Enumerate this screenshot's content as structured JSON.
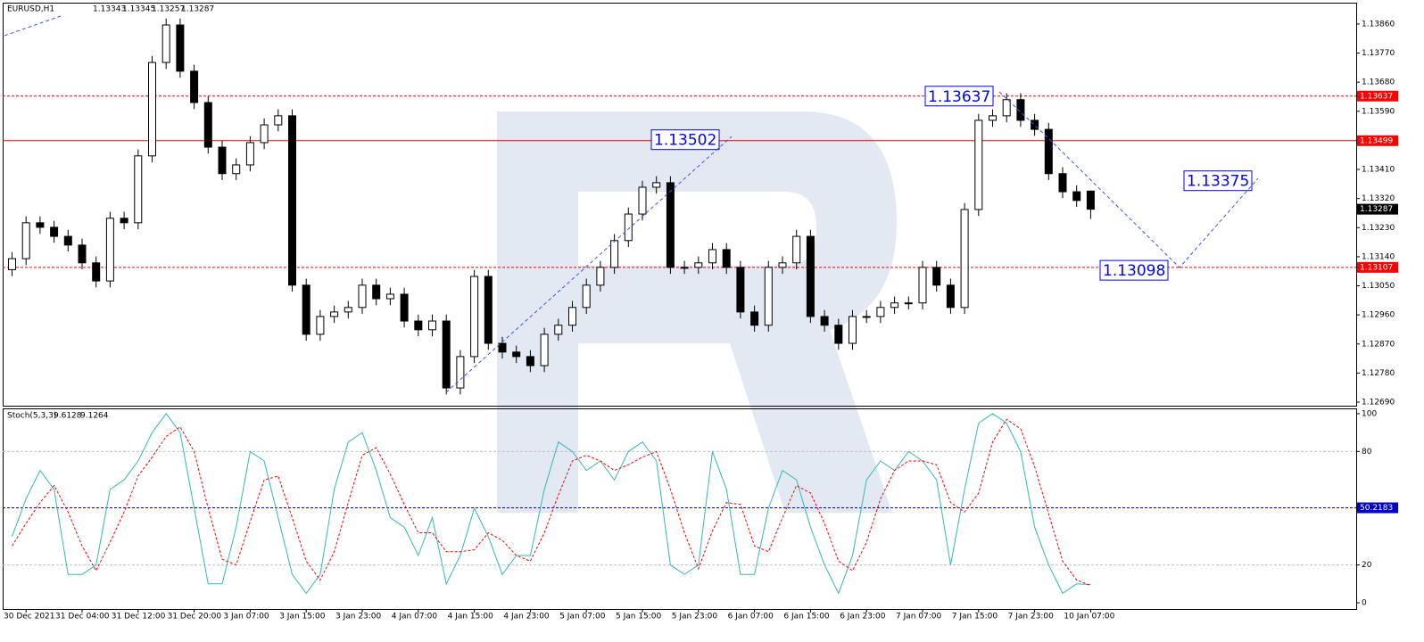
{
  "chart_data": [
    {
      "type": "candlestick",
      "symbol": "EURUSD,H1",
      "categories": [
        null,
        "30 Dec 2021",
        null,
        null,
        null,
        "31 Dec 04:00",
        null,
        null,
        null,
        "31 Dec 12:00",
        null,
        null,
        null,
        "31 Dec 20:00",
        null,
        null,
        null,
        "3 Jan 07:00",
        null,
        null,
        null,
        "3 Jan 15:00",
        null,
        null,
        null,
        "3 Jan 23:00",
        null,
        null,
        null,
        "4 Jan 07:00",
        null,
        null,
        null,
        "4 Jan 15:00",
        null,
        null,
        null,
        "4 Jan 23:00",
        null,
        null,
        null,
        "5 Jan 07:00",
        null,
        null,
        null,
        "5 Jan 15:00",
        null,
        null,
        null,
        "5 Jan 23:00",
        null,
        null,
        null,
        "6 Jan 07:00",
        null,
        null,
        null,
        "6 Jan 15:00",
        null,
        null,
        null,
        "6 Jan 23:00",
        null,
        null,
        null,
        "7 Jan 07:00",
        null,
        null,
        null,
        "7 Jan 15:00",
        null,
        null,
        null,
        "7 Jan 23:00",
        null,
        null,
        null,
        "10 Jan 07:00"
      ],
      "open": [
        1.131,
        1.13134,
        1.13245,
        1.13231,
        1.13203,
        1.13176,
        1.13121,
        1.13065,
        1.13259,
        1.13245,
        1.13452,
        1.13741,
        1.13857,
        1.13714,
        1.13617,
        1.13479,
        1.13397,
        1.13424,
        1.13493,
        1.13548,
        1.13576,
        1.13052,
        1.129,
        1.12955,
        1.12969,
        1.12983,
        1.13052,
        1.1301,
        1.13024,
        1.12941,
        1.12914,
        1.12941,
        1.12734,
        1.12831,
        1.13079,
        1.12872,
        1.12845,
        1.12831,
        1.12803,
        1.129,
        1.12928,
        1.12983,
        1.13052,
        1.13107,
        1.1319,
        1.13272,
        1.13355,
        1.13369,
        1.13107,
        1.13107,
        1.13121,
        1.13162,
        1.13107,
        1.12969,
        1.12928,
        1.13107,
        1.13121,
        1.13203,
        1.12955,
        1.12928,
        1.12872,
        1.12955,
        1.12955,
        1.12983,
        1.12997,
        1.12997,
        1.13107,
        1.13052,
        1.12983,
        1.13286,
        1.13562,
        1.13576,
        1.13626,
        1.13562,
        1.13534,
        1.13397,
        1.13341,
        1.13343
      ],
      "high": [
        1.13154,
        1.13265,
        1.13265,
        1.13251,
        1.13223,
        1.13196,
        1.13141,
        1.13279,
        1.13279,
        1.13472,
        1.13761,
        1.13877,
        1.13877,
        1.13734,
        1.13637,
        1.13499,
        1.13444,
        1.13513,
        1.13568,
        1.13596,
        1.13596,
        1.13072,
        1.12975,
        1.12989,
        1.13003,
        1.13072,
        1.13072,
        1.13044,
        1.13044,
        1.12961,
        1.12961,
        1.12961,
        1.12851,
        1.13099,
        1.13099,
        1.12892,
        1.12865,
        1.12851,
        1.1292,
        1.12948,
        1.13003,
        1.13072,
        1.13127,
        1.1321,
        1.13292,
        1.13375,
        1.13389,
        1.13389,
        1.13127,
        1.13141,
        1.13182,
        1.13182,
        1.13127,
        1.12989,
        1.13127,
        1.13141,
        1.13223,
        1.13223,
        1.12975,
        1.12948,
        1.12975,
        1.12975,
        1.13003,
        1.13017,
        1.13017,
        1.13127,
        1.13127,
        1.13072,
        1.13306,
        1.13582,
        1.13596,
        1.13646,
        1.13646,
        1.13582,
        1.13554,
        1.13417,
        1.13361,
        1.13345
      ],
      "low": [
        1.1308,
        1.13114,
        1.13211,
        1.13183,
        1.13156,
        1.13101,
        1.13045,
        1.13045,
        1.13225,
        1.13225,
        1.13432,
        1.13721,
        1.13694,
        1.13597,
        1.13459,
        1.13377,
        1.13377,
        1.13404,
        1.13473,
        1.13528,
        1.13032,
        1.1288,
        1.1288,
        1.12935,
        1.12949,
        1.12963,
        1.1299,
        1.1299,
        1.12921,
        1.12894,
        1.12894,
        1.12714,
        1.12714,
        1.12811,
        1.12852,
        1.12825,
        1.12811,
        1.12783,
        1.12783,
        1.1288,
        1.12908,
        1.12963,
        1.13032,
        1.13087,
        1.1317,
        1.13252,
        1.13335,
        1.13087,
        1.13087,
        1.13087,
        1.13101,
        1.13087,
        1.12949,
        1.12908,
        1.12908,
        1.13087,
        1.13101,
        1.12935,
        1.12908,
        1.12852,
        1.12852,
        1.12935,
        1.12935,
        1.12963,
        1.12977,
        1.12977,
        1.13032,
        1.12963,
        1.12963,
        1.13266,
        1.13542,
        1.13556,
        1.13542,
        1.13514,
        1.13377,
        1.13321,
        1.13294,
        1.13257
      ],
      "close": [
        1.13134,
        1.13245,
        1.13231,
        1.13203,
        1.13176,
        1.13121,
        1.13065,
        1.13259,
        1.13245,
        1.13452,
        1.13741,
        1.13857,
        1.13714,
        1.13617,
        1.13479,
        1.13397,
        1.13424,
        1.13493,
        1.13548,
        1.13576,
        1.13052,
        1.129,
        1.12955,
        1.12969,
        1.12983,
        1.13052,
        1.1301,
        1.13024,
        1.12941,
        1.12914,
        1.12941,
        1.12734,
        1.12831,
        1.13079,
        1.12872,
        1.12845,
        1.12831,
        1.12803,
        1.129,
        1.12928,
        1.12983,
        1.13052,
        1.13107,
        1.1319,
        1.13272,
        1.13355,
        1.13369,
        1.13107,
        1.13107,
        1.13121,
        1.13162,
        1.13107,
        1.12969,
        1.12928,
        1.13107,
        1.13121,
        1.13203,
        1.12955,
        1.12928,
        1.12872,
        1.12955,
        1.12955,
        1.12983,
        1.12997,
        1.12997,
        1.13107,
        1.13052,
        1.12983,
        1.13286,
        1.13562,
        1.13576,
        1.13626,
        1.13562,
        1.13534,
        1.13397,
        1.13341,
        1.13314,
        1.13287
      ],
      "ylim": [
        1.12679,
        1.13926
      ],
      "yticks": [
        {
          "value": 1.1386,
          "label": "1.13860"
        },
        {
          "value": 1.1377,
          "label": "1.13770"
        },
        {
          "value": 1.1368,
          "label": "1.13680"
        },
        {
          "value": 1.1359,
          "label": "1.13590"
        },
        {
          "value": 1.135,
          "label": "1.13500"
        },
        {
          "value": 1.1341,
          "label": "1.13410"
        },
        {
          "value": 1.1332,
          "label": "1.13320"
        },
        {
          "value": 1.1323,
          "label": "1.13230"
        },
        {
          "value": 1.1314,
          "label": "1.13140"
        },
        {
          "value": 1.1305,
          "label": "1.13050"
        },
        {
          "value": 1.1296,
          "label": "1.12960"
        },
        {
          "value": 1.1287,
          "label": "1.12870"
        },
        {
          "value": 1.1278,
          "label": "1.12780"
        },
        {
          "value": 1.1269,
          "label": "1.12690"
        }
      ],
      "hlines": [
        {
          "value": 1.13637,
          "style": "dashed"
        },
        {
          "value": 1.13499,
          "style": "solid"
        },
        {
          "value": 1.13107,
          "style": "dashed"
        }
      ],
      "hline_color": "#ff0000",
      "annotations": [
        1.13502,
        1.13637,
        1.13375,
        1.13098
      ],
      "annotation_color": "#0000ff"
    },
    {
      "type": "line",
      "title": "Stoch(5,3,3)",
      "series": [
        {
          "color": "#36b8b4",
          "dash": false,
          "values": [
            35,
            55,
            70,
            60,
            15,
            15,
            20,
            60,
            65,
            75,
            90,
            100,
            90,
            50,
            10,
            10,
            40,
            80,
            75,
            45,
            15,
            5,
            15,
            60,
            85,
            90,
            70,
            45,
            40,
            25,
            45,
            10,
            25,
            50,
            35,
            15,
            25,
            25,
            60,
            85,
            80,
            70,
            75,
            65,
            80,
            85,
            75,
            20,
            15,
            20,
            80,
            60,
            15,
            15,
            50,
            70,
            65,
            40,
            20,
            5,
            25,
            65,
            75,
            70,
            80,
            75,
            65,
            20,
            60,
            95,
            100,
            95,
            80,
            40,
            20,
            5,
            10,
            9.6128
          ]
        },
        {
          "color": "#ff0000",
          "dash": true,
          "values": [
            30,
            42,
            53,
            62,
            48,
            30,
            17,
            32,
            48,
            67,
            77,
            88,
            93,
            80,
            50,
            23,
            20,
            43,
            65,
            67,
            45,
            22,
            12,
            27,
            53,
            78,
            82,
            68,
            52,
            37,
            37,
            27,
            27,
            28,
            37,
            33,
            25,
            22,
            37,
            57,
            75,
            78,
            75,
            70,
            73,
            77,
            80,
            60,
            37,
            18,
            38,
            53,
            52,
            30,
            27,
            45,
            62,
            58,
            42,
            22,
            17,
            32,
            55,
            70,
            75,
            75,
            73,
            53,
            48,
            58,
            85,
            97,
            92,
            72,
            47,
            22,
            12,
            9.1264
          ]
        }
      ],
      "ylim": [
        -3.3,
        102.8
      ],
      "yticks": [
        0,
        20,
        80,
        100
      ],
      "levels": [
        20,
        80
      ],
      "level_color": "#c0c0c0",
      "marker_level": 50.2183,
      "marker_color": "#0000c8"
    }
  ]
}
